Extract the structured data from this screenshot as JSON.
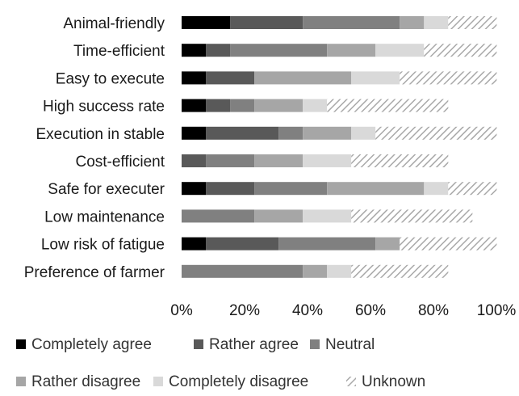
{
  "chart_data": {
    "type": "bar",
    "orientation": "horizontal",
    "stacked": true,
    "categories": [
      "Animal-friendly",
      "Time-efficient",
      "Easy to execute",
      "High success rate",
      "Execution in stable",
      "Cost-efficient",
      "Safe for executer",
      "Low maintenance",
      "Low risk of fatigue",
      "Preference of farmer"
    ],
    "series": [
      {
        "name": "Completely agree",
        "color": "#000000",
        "pattern": "solid",
        "values": [
          15.4,
          7.7,
          7.7,
          7.7,
          7.7,
          0,
          7.7,
          0,
          7.7,
          0
        ]
      },
      {
        "name": "Rather agree",
        "color": "#595959",
        "pattern": "solid",
        "values": [
          23.1,
          7.7,
          15.4,
          7.7,
          23.1,
          7.7,
          15.4,
          0,
          23.1,
          0
        ]
      },
      {
        "name": "Neutral",
        "color": "#808080",
        "pattern": "solid",
        "values": [
          30.8,
          30.8,
          0,
          7.7,
          7.7,
          15.4,
          23.1,
          23.1,
          30.8,
          38.5
        ]
      },
      {
        "name": "Rather disagree",
        "color": "#a6a6a6",
        "pattern": "solid",
        "values": [
          7.7,
          15.4,
          30.8,
          15.4,
          15.4,
          15.4,
          30.8,
          15.4,
          7.7,
          7.7
        ]
      },
      {
        "name": "Completely disagree",
        "color": "#d9d9d9",
        "pattern": "solid",
        "values": [
          7.7,
          15.4,
          15.4,
          7.7,
          7.7,
          15.4,
          7.7,
          15.4,
          0,
          7.7
        ]
      },
      {
        "name": "Unknown",
        "color": "#bfbfbf",
        "pattern": "hatched",
        "values": [
          15.4,
          23.1,
          30.8,
          38.5,
          38.5,
          30.8,
          15.4,
          38.5,
          30.8,
          30.8
        ]
      }
    ],
    "xlim": [
      0,
      100
    ],
    "x_ticks": [
      "0%",
      "20%",
      "40%",
      "60%",
      "80%",
      "100%"
    ],
    "grid": false,
    "legend_position": "bottom"
  }
}
